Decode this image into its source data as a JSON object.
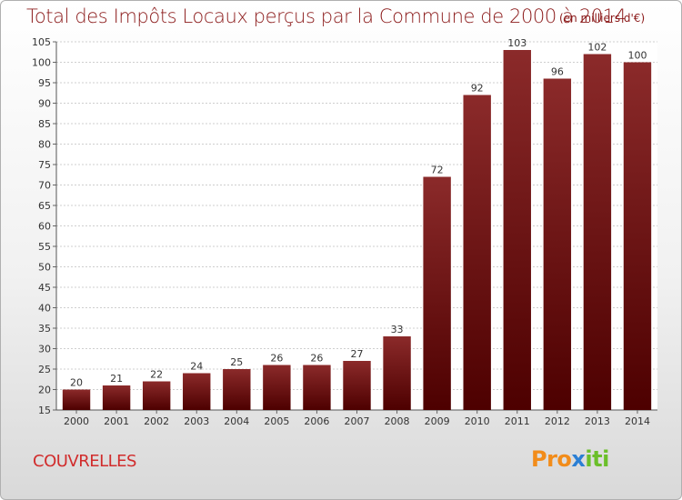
{
  "chart_data": {
    "type": "bar",
    "title": "Total des Impôts Locaux perçus par la Commune de 2000 à 2014",
    "unit": "(en milliers d'€)",
    "categories": [
      "2000",
      "2001",
      "2002",
      "2003",
      "2004",
      "2005",
      "2006",
      "2007",
      "2008",
      "2009",
      "2010",
      "2011",
      "2012",
      "2013",
      "2014"
    ],
    "values": [
      20,
      21,
      22,
      24,
      25,
      26,
      26,
      27,
      33,
      72,
      92,
      103,
      96,
      102,
      100
    ],
    "ylim": [
      15,
      105
    ],
    "yticks": [
      15,
      20,
      25,
      30,
      35,
      40,
      45,
      50,
      55,
      60,
      65,
      70,
      75,
      80,
      85,
      90,
      95,
      100,
      105
    ],
    "xlabel": "",
    "ylabel": "",
    "grid": true,
    "bar_color": "#8b1a1a"
  },
  "commune": "COUVRELLES",
  "logo": {
    "part1": "Pro",
    "part2": "x",
    "part3": "iti"
  }
}
